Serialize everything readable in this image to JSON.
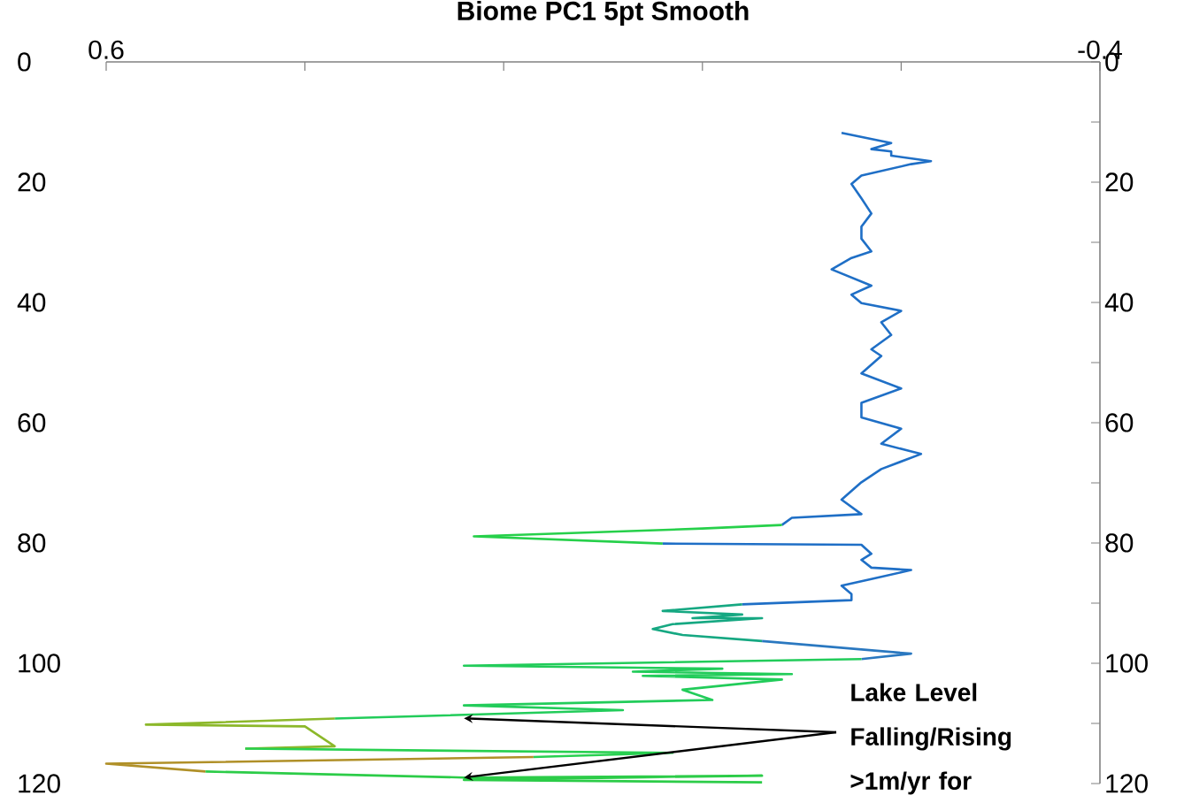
{
  "chart_data": {
    "type": "line",
    "title": "Biome PC1 5pt Smooth",
    "xlim": [
      0.6,
      -0.4
    ],
    "xticks": [
      0.6,
      {
        "value": 0.4,
        "label": null
      },
      {
        "value": 0.2,
        "label": null
      },
      {
        "value": 0,
        "label": null
      },
      {
        "value": -0.2,
        "label": null
      },
      -0.4
    ],
    "ylim": [
      120,
      0
    ],
    "yticks": [
      0,
      20,
      40,
      60,
      80,
      100,
      120
    ],
    "y2lim": [
      120,
      0
    ],
    "y2ticks": [
      0,
      {
        "value": 10,
        "label": null
      },
      20,
      {
        "value": 30,
        "label": null
      },
      40,
      {
        "value": 50,
        "label": null
      },
      60,
      {
        "value": 70,
        "label": null
      },
      80,
      {
        "value": 90,
        "label": null
      },
      100,
      {
        "value": 110,
        "label": null
      },
      120
    ],
    "grid": false,
    "marker": "none",
    "line_style": "solid",
    "annotations": [
      {
        "text": "Lake Level Falling/Rising >1m/yr for",
        "x": 0.24,
        "y": 119.0
      }
    ],
    "series": [
      {
        "color": "#1f6fc6",
        "x": [
          -0.14,
          -0.19,
          -0.17,
          -0.19,
          -0.19,
          -0.23,
          -0.21,
          -0.16,
          -0.15,
          -0.16,
          -0.17,
          -0.16,
          -0.16,
          -0.17,
          -0.15,
          -0.13,
          -0.17,
          -0.15,
          -0.16,
          -0.2,
          -0.18,
          -0.19,
          -0.17,
          -0.18,
          -0.16,
          -0.2,
          -0.16,
          -0.16,
          -0.2,
          -0.18,
          -0.22,
          -0.18,
          -0.16,
          -0.14,
          -0.16,
          -0.09,
          -0.08
        ],
        "values": [
          11.8,
          13.5,
          14.5,
          14.9,
          15.6,
          16.5,
          17.0,
          18.9,
          20.3,
          22.7,
          25.2,
          27.4,
          29.4,
          31.5,
          32.6,
          34.5,
          37.2,
          38.7,
          40.1,
          41.4,
          43.3,
          45.4,
          47.8,
          48.9,
          51.8,
          54.3,
          56.7,
          59.1,
          61.0,
          63.5,
          65.2,
          67.7,
          69.9,
          72.8,
          75.2,
          75.8,
          77.0
        ]
      },
      {
        "color": "#26d04a",
        "x": [
          -0.08,
          0.0,
          0.23,
          0.04
        ],
        "values": [
          77.0,
          77.6,
          78.9,
          80.1
        ]
      },
      {
        "color": "#1f6fc6",
        "x": [
          0.04,
          -0.16,
          -0.17,
          -0.16,
          -0.17,
          -0.21,
          -0.17,
          -0.14,
          -0.15,
          -0.15,
          -0.04
        ],
        "values": [
          80.1,
          80.3,
          81.8,
          82.8,
          84.1,
          84.5,
          86.0,
          87.1,
          88.5,
          89.5,
          90.2
        ]
      },
      {
        "color": "#16a882",
        "x": [
          -0.04,
          0.04,
          -0.04,
          0.01,
          -0.06,
          0.03,
          0.05,
          0.02,
          -0.06
        ],
        "values": [
          90.2,
          91.3,
          91.9,
          92.5,
          92.5,
          93.5,
          94.3,
          95.3,
          96.3
        ]
      },
      {
        "color": "#2a78c0",
        "x": [
          -0.06,
          -0.21,
          -0.16
        ],
        "values": [
          96.3,
          98.4,
          99.3
        ]
      },
      {
        "color": "#22cc5a",
        "x": [
          -0.16,
          0.24,
          -0.02,
          0.07,
          -0.09,
          0.06,
          -0.08,
          0.02,
          -0.01,
          0.24,
          0.08,
          0.37
        ],
        "values": [
          99.3,
          100.4,
          100.9,
          101.4,
          101.8,
          102.1,
          102.7,
          104.4,
          106.1,
          107.0,
          107.8,
          109.2
        ]
      },
      {
        "color": "#8cb82a",
        "x": [
          0.37,
          0.56,
          0.4,
          0.37,
          0.46
        ],
        "values": [
          109.2,
          110.2,
          110.5,
          113.8,
          114.2
        ]
      },
      {
        "color": "#28d050",
        "x": [
          0.46,
          0.03,
          0.17
        ],
        "values": [
          114.2,
          114.9,
          115.6
        ]
      },
      {
        "color": "#b09028",
        "x": [
          0.17,
          0.6,
          0.5
        ],
        "values": [
          115.6,
          116.7,
          118.0
        ]
      },
      {
        "color": "#2ccc48",
        "x": [
          0.5,
          0.24,
          -0.06,
          0.24,
          -0.06
        ],
        "values": [
          118.0,
          119.0,
          118.7,
          119.4,
          119.8
        ]
      }
    ]
  }
}
